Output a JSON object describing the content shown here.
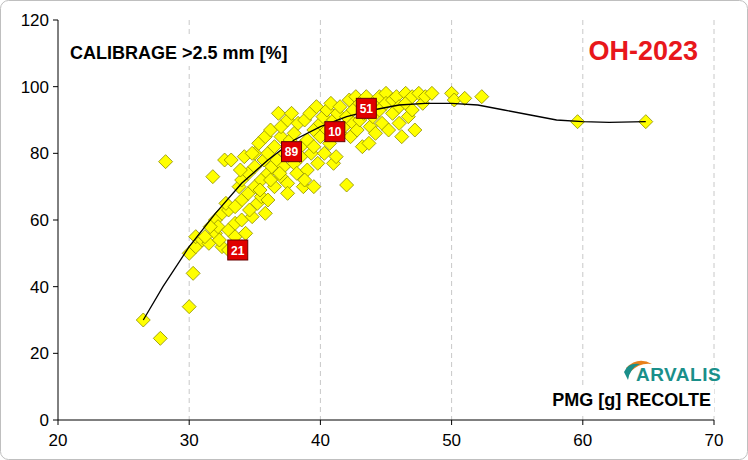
{
  "chart_data": {
    "type": "scatter",
    "title": "OH-2023",
    "y_label": "CALIBRAGE >2.5 mm [%]",
    "x_label": "PMG [g] RECOLTE",
    "logo": "ARVALIS",
    "xlim": [
      20,
      70
    ],
    "xticks": [
      20,
      30,
      40,
      50,
      60,
      70
    ],
    "ylim": [
      0,
      120
    ],
    "yticks": [
      0,
      20,
      40,
      60,
      80,
      100,
      120
    ],
    "grid": "x",
    "series": [
      {
        "type": "scatter",
        "marker": "diamond",
        "color": "#ffff00",
        "x": [
          26.5,
          27.8,
          28.2,
          30,
          30.3,
          30,
          30.5,
          30.5,
          31,
          31.5,
          31.8,
          32,
          32,
          32.2,
          32.5,
          32.5,
          32.7,
          33,
          33,
          33,
          33.2,
          33.5,
          33.5,
          33.8,
          34,
          34,
          34,
          34.2,
          34.3,
          34.5,
          34.5,
          34.8,
          35,
          35,
          35,
          35.2,
          35.3,
          35.5,
          35.5,
          35.7,
          35.8,
          36,
          36,
          36,
          36.2,
          36.3,
          36.5,
          36.5,
          36.7,
          36.8,
          37,
          37,
          37,
          37.2,
          37.3,
          37.5,
          37.5,
          37.7,
          37.8,
          38,
          38,
          38.2,
          38.3,
          38.5,
          38.5,
          38.7,
          38.8,
          39,
          39,
          39.2,
          39.3,
          39.5,
          39.5,
          39.7,
          39.8,
          40,
          40,
          40.2,
          40.3,
          40.5,
          40.5,
          40.7,
          40.8,
          41,
          41,
          41.2,
          41.3,
          41.5,
          41.5,
          41.8,
          42,
          42,
          42.2,
          42.3,
          42.5,
          42.5,
          42.7,
          42.8,
          43,
          43,
          43.2,
          43.3,
          43.5,
          43.7,
          43.8,
          44,
          44,
          44.2,
          44.5,
          44.5,
          44.7,
          45,
          45,
          45.2,
          45.5,
          45.5,
          45.8,
          46,
          46,
          46.2,
          46.5,
          46.5,
          46.7,
          47,
          47,
          47.2,
          47.5,
          47.8,
          48,
          48.5,
          50,
          50.2,
          51,
          52.3,
          59.6,
          64.8,
          31.2,
          32.8,
          33.5,
          34.8,
          35.8,
          36.2,
          37.5,
          38.8,
          39.5,
          33.9,
          34.6,
          35.4,
          36.9,
          31.6,
          32.3
        ],
        "values": [
          30,
          24.5,
          77.5,
          34,
          44,
          50,
          52,
          55,
          54,
          53,
          73,
          56,
          60,
          58,
          52,
          62,
          78,
          51,
          57,
          63,
          78,
          55,
          59,
          70,
          66,
          60,
          72,
          79,
          56,
          68,
          74,
          61,
          80,
          70,
          76,
          65,
          83,
          72,
          67,
          78,
          85,
          74,
          80,
          66,
          87,
          76,
          70,
          82,
          78,
          92,
          85,
          73,
          88,
          76,
          80,
          90,
          71,
          84,
          92,
          77,
          86,
          74,
          89,
          82,
          79,
          70,
          90,
          84,
          75,
          92,
          80,
          87,
          82,
          94,
          77,
          89,
          85,
          91,
          80,
          93,
          87,
          83,
          95,
          77,
          90,
          79,
          92,
          86,
          94,
          88,
          70.5,
          91,
          96,
          85,
          93,
          89,
          97,
          87,
          95,
          90,
          82,
          92,
          97,
          83,
          88,
          95,
          91,
          86,
          97,
          93,
          89,
          98,
          95,
          87,
          96,
          92,
          97,
          94,
          89,
          85,
          98,
          95,
          91,
          97,
          93,
          87,
          98,
          95,
          97,
          98,
          98,
          96,
          96.5,
          97,
          89.5,
          89.5,
          55,
          65,
          64,
          80,
          62,
          72,
          68,
          72,
          70,
          75,
          63,
          69,
          74,
          58,
          54
        ]
      },
      {
        "type": "line",
        "color": "#000000",
        "x": [
          26.5,
          28,
          30,
          32,
          34,
          36,
          38,
          40,
          42,
          44,
          46,
          48,
          50,
          52,
          54,
          56,
          58,
          60,
          62,
          64.8
        ],
        "values": [
          30,
          40,
          52,
          62,
          71,
          78,
          84,
          88,
          91,
          93,
          94.5,
          95,
          95,
          94.5,
          93,
          91.5,
          90,
          89.5,
          89.3,
          89.5
        ]
      },
      {
        "type": "scatter",
        "marker": "square",
        "color": "#e00000",
        "x": [
          33.7,
          37.8,
          41.1,
          43.5
        ],
        "values": [
          51,
          80.5,
          86.5,
          93.5
        ],
        "labels": [
          "21",
          "89",
          "10",
          "51"
        ]
      }
    ]
  }
}
